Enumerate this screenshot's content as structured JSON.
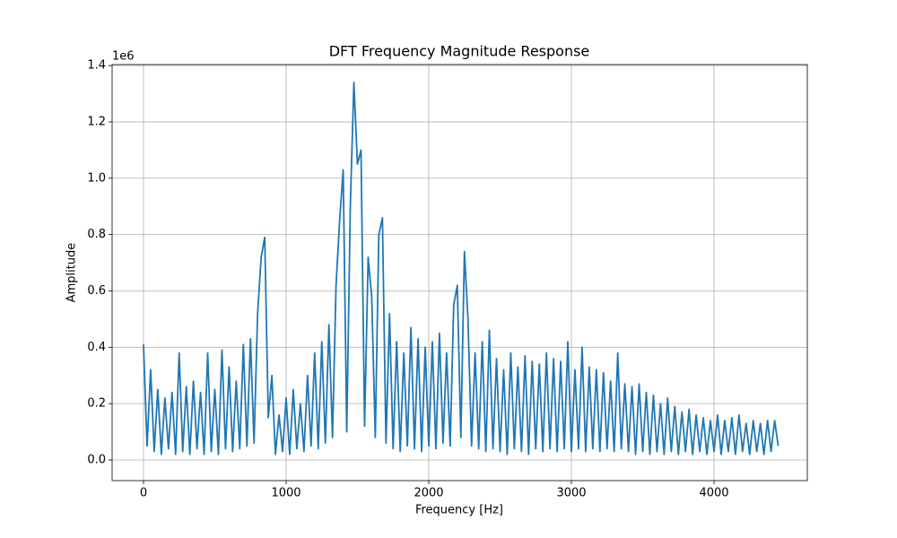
{
  "chart_data": {
    "type": "line",
    "title": "DFT Frequency Magnitude Response",
    "x_label": "Frequency [Hz]",
    "y_label": "Amplitude",
    "y_offset_label": "1e6",
    "x": [
      0,
      25,
      50,
      75,
      100,
      125,
      150,
      175,
      200,
      225,
      250,
      275,
      300,
      325,
      350,
      375,
      400,
      425,
      450,
      475,
      500,
      525,
      550,
      575,
      600,
      625,
      650,
      675,
      700,
      725,
      750,
      775,
      800,
      825,
      850,
      875,
      900,
      925,
      950,
      975,
      1000,
      1025,
      1050,
      1075,
      1100,
      1125,
      1150,
      1175,
      1200,
      1225,
      1250,
      1275,
      1300,
      1325,
      1350,
      1375,
      1400,
      1425,
      1450,
      1475,
      1500,
      1525,
      1550,
      1575,
      1600,
      1625,
      1650,
      1675,
      1700,
      1725,
      1750,
      1775,
      1800,
      1825,
      1850,
      1875,
      1900,
      1925,
      1950,
      1975,
      2000,
      2025,
      2050,
      2075,
      2100,
      2125,
      2150,
      2175,
      2200,
      2225,
      2250,
      2275,
      2300,
      2325,
      2350,
      2375,
      2400,
      2425,
      2450,
      2475,
      2500,
      2525,
      2550,
      2575,
      2600,
      2625,
      2650,
      2675,
      2700,
      2725,
      2750,
      2775,
      2800,
      2825,
      2850,
      2875,
      2900,
      2925,
      2950,
      2975,
      3000,
      3025,
      3050,
      3075,
      3100,
      3125,
      3150,
      3175,
      3200,
      3225,
      3250,
      3275,
      3300,
      3325,
      3350,
      3375,
      3400,
      3425,
      3450,
      3475,
      3500,
      3525,
      3550,
      3575,
      3600,
      3625,
      3650,
      3675,
      3700,
      3725,
      3750,
      3775,
      3800,
      3825,
      3850,
      3875,
      3900,
      3925,
      3950,
      3975,
      4000,
      4025,
      4050,
      4075,
      4100,
      4125,
      4150,
      4175,
      4200,
      4225,
      4250,
      4275,
      4300,
      4325,
      4350,
      4375,
      4400,
      4425,
      4450
    ],
    "series": [
      {
        "name": "Amplitude",
        "color": "#1f77b4",
        "values": [
          410000,
          50000,
          320000,
          30000,
          250000,
          20000,
          220000,
          40000,
          240000,
          20000,
          380000,
          30000,
          260000,
          20000,
          280000,
          40000,
          240000,
          20000,
          380000,
          30000,
          250000,
          20000,
          390000,
          40000,
          330000,
          30000,
          280000,
          40000,
          410000,
          50000,
          430000,
          60000,
          520000,
          720000,
          790000,
          150000,
          300000,
          20000,
          160000,
          30000,
          220000,
          20000,
          250000,
          40000,
          200000,
          30000,
          300000,
          50000,
          380000,
          40000,
          420000,
          60000,
          480000,
          80000,
          620000,
          850000,
          1030000,
          100000,
          900000,
          1340000,
          1050000,
          1100000,
          120000,
          720000,
          580000,
          80000,
          800000,
          860000,
          60000,
          520000,
          40000,
          420000,
          30000,
          380000,
          50000,
          470000,
          40000,
          430000,
          30000,
          400000,
          50000,
          420000,
          40000,
          450000,
          60000,
          380000,
          50000,
          550000,
          620000,
          80000,
          740000,
          500000,
          50000,
          380000,
          40000,
          420000,
          30000,
          460000,
          40000,
          360000,
          30000,
          320000,
          20000,
          380000,
          40000,
          330000,
          30000,
          370000,
          20000,
          350000,
          40000,
          340000,
          30000,
          380000,
          40000,
          360000,
          30000,
          350000,
          40000,
          420000,
          30000,
          320000,
          40000,
          400000,
          30000,
          330000,
          40000,
          320000,
          30000,
          310000,
          40000,
          280000,
          30000,
          380000,
          40000,
          270000,
          30000,
          260000,
          20000,
          270000,
          30000,
          240000,
          20000,
          230000,
          30000,
          200000,
          20000,
          220000,
          30000,
          190000,
          20000,
          170000,
          30000,
          180000,
          20000,
          160000,
          30000,
          150000,
          20000,
          140000,
          30000,
          160000,
          20000,
          140000,
          30000,
          150000,
          20000,
          160000,
          30000,
          130000,
          20000,
          140000,
          30000,
          130000,
          20000,
          140000,
          30000,
          140000,
          50000
        ]
      }
    ],
    "xlim": [
      -220,
      4654
    ],
    "ylim": [
      -73200,
      1403500
    ],
    "xticks": [
      0,
      1000,
      2000,
      3000,
      4000
    ],
    "yticks": [
      {
        "value": 0,
        "label": "0.0"
      },
      {
        "value": 200000,
        "label": "0.2"
      },
      {
        "value": 400000,
        "label": "0.4"
      },
      {
        "value": 600000,
        "label": "0.6"
      },
      {
        "value": 800000,
        "label": "0.8"
      },
      {
        "value": 1000000,
        "label": "1.0"
      },
      {
        "value": 1200000,
        "label": "1.2"
      },
      {
        "value": 1400000,
        "label": "1.4"
      }
    ],
    "grid": true
  }
}
